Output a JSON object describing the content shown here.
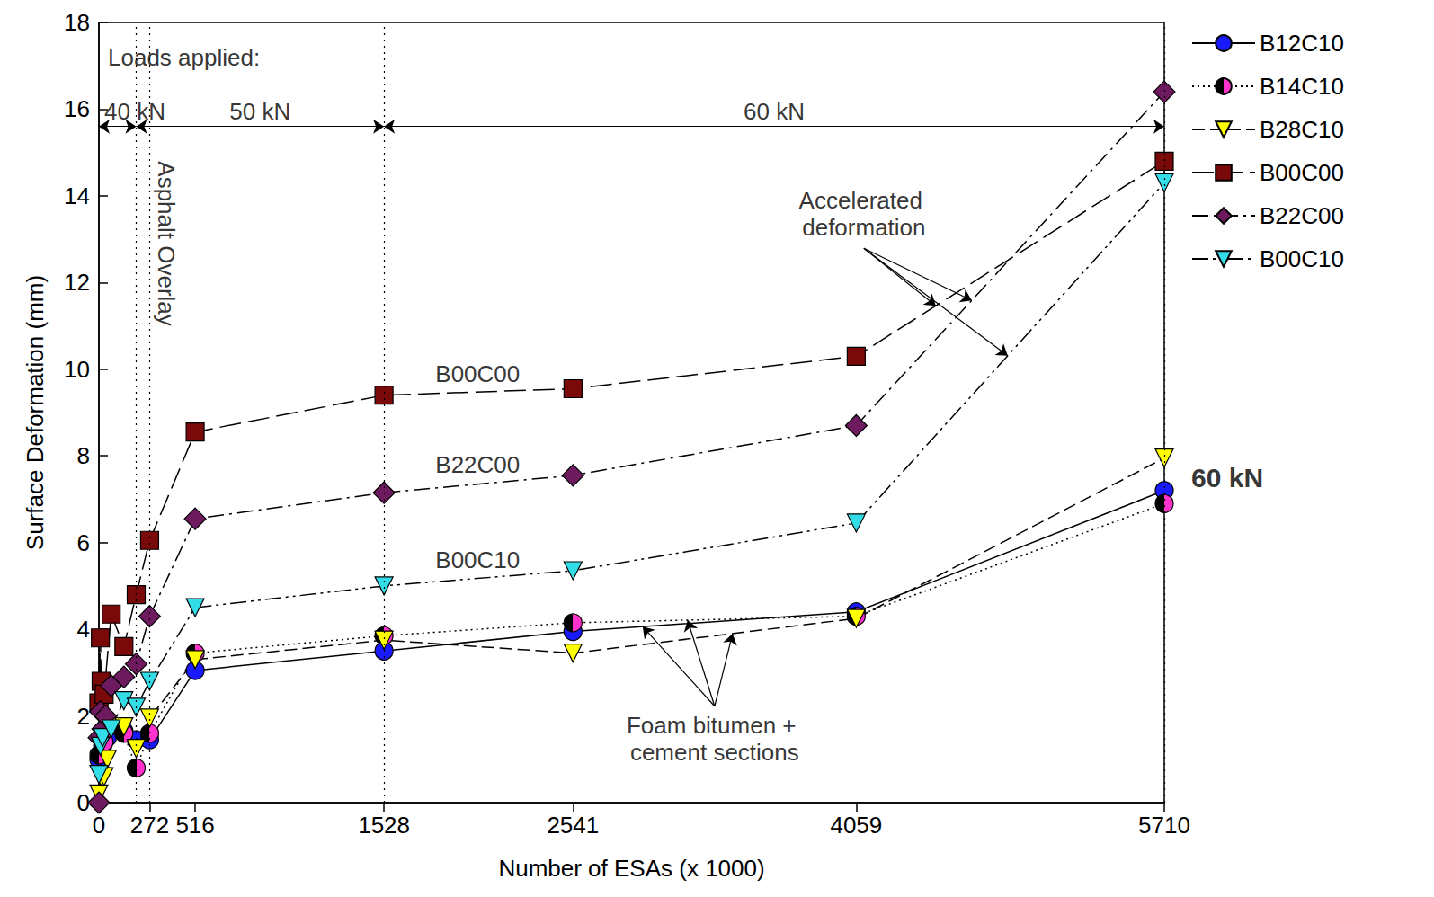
{
  "chart_data": {
    "type": "line",
    "x_label": "Number of ESAs (x 1000)",
    "y_label": "Surface Deformation (mm)",
    "xlim": [
      0,
      5710
    ],
    "xticks": [
      0,
      272,
      516,
      1528,
      2541,
      4059,
      5710
    ],
    "ylim": [
      0,
      18
    ],
    "yticks": [
      0,
      2,
      4,
      6,
      8,
      10,
      12,
      14,
      16,
      18
    ],
    "grid": false,
    "legend": "right",
    "series": [
      {
        "name": "B12C10",
        "color": "#1a1aff",
        "marker": "circle",
        "line_style": "solid",
        "x": [
          0,
          20,
          45,
          66,
          134,
          200,
          272,
          516,
          1528,
          2541,
          4059,
          5710
        ],
        "values": [
          1.0,
          1.3,
          1.5,
          1.8,
          1.65,
          1.45,
          1.45,
          3.05,
          3.5,
          3.95,
          4.4,
          7.2
        ]
      },
      {
        "name": "B14C10",
        "color": "#ff33cc",
        "marker": "half_circle",
        "line_style": "dotted",
        "x": [
          0,
          28,
          66,
          134,
          200,
          272,
          516,
          1528,
          2541,
          4059,
          5710
        ],
        "values": [
          1.1,
          1.4,
          1.8,
          1.6,
          0.8,
          1.6,
          3.45,
          3.85,
          4.15,
          4.3,
          6.9
        ]
      },
      {
        "name": "B28C10",
        "color": "#ffff00",
        "marker": "triangle_down",
        "line_style": "dashed",
        "x": [
          0,
          12,
          28,
          45,
          66,
          134,
          200,
          272,
          516,
          1528,
          2541,
          4059,
          5710
        ],
        "values": [
          0.2,
          0.6,
          0.6,
          1.0,
          1.75,
          1.75,
          1.25,
          1.95,
          3.3,
          3.75,
          3.45,
          4.25,
          7.95
        ]
      },
      {
        "name": "B00C00",
        "color": "#7a0a0a",
        "marker": "square",
        "line_style": "longdash",
        "x": [
          0,
          8,
          12,
          28,
          66,
          134,
          200,
          272,
          516,
          1528,
          2541,
          4059,
          5710
        ],
        "values": [
          2.3,
          3.8,
          2.8,
          2.5,
          4.35,
          3.6,
          4.8,
          6.05,
          8.55,
          9.4,
          9.55,
          10.3,
          14.8
        ]
      },
      {
        "name": "B22C00",
        "color": "#6e1a5e",
        "marker": "diamond",
        "line_style": "dashdot",
        "x": [
          0,
          0,
          8,
          20,
          36,
          66,
          134,
          200,
          272,
          516,
          1528,
          2541,
          4059,
          5710
        ],
        "values": [
          0,
          1.5,
          2.1,
          1.7,
          2.0,
          2.7,
          2.9,
          3.2,
          4.3,
          6.55,
          7.15,
          7.55,
          8.7,
          16.4
        ]
      },
      {
        "name": "B00C10",
        "color": "#33dde8",
        "marker": "triangle_down",
        "line_style": "dashdotdot",
        "x": [
          0,
          8,
          20,
          66,
          134,
          200,
          272,
          516,
          1528,
          2541,
          4059,
          5710
        ],
        "values": [
          0.65,
          1.3,
          1.5,
          1.7,
          2.35,
          2.2,
          2.8,
          4.5,
          5.0,
          5.35,
          6.45,
          14.3
        ]
      }
    ],
    "loads": {
      "title": "Loads applied:",
      "title_y": 17.2,
      "arrow_y": 15.6,
      "ranges": [
        {
          "text": "40 kN",
          "from": 0,
          "to": 200
        },
        {
          "text": "50 kN",
          "from": 200,
          "to": 1528
        },
        {
          "text": "60 kN",
          "from": 1528,
          "to": 5710
        }
      ]
    },
    "vlines": [
      {
        "x": 200
      },
      {
        "x": 272,
        "label": "Asphalt Overlay",
        "label_y": 14.8
      },
      {
        "x": 1528
      },
      {
        "x": 5710
      }
    ],
    "annotations": [
      {
        "text": "B00C00",
        "x": 2030,
        "y": 9.5
      },
      {
        "text": "B22C00",
        "x": 2030,
        "y": 7.4
      },
      {
        "text": "B00C10",
        "x": 2030,
        "y": 5.2
      },
      {
        "text": "Accelerated deformation",
        "x": 4100,
        "y": 14.2,
        "arrows_to": [
          "B00C00",
          "B22C00",
          "B00C10"
        ]
      },
      {
        "text": "Foam bitumen + cement sections",
        "x": 3300,
        "y": 2.1,
        "arrows_to": [
          "B12C10",
          "B14C10",
          "B28C10"
        ]
      },
      {
        "text": "60 kN",
        "x": 5710,
        "y": 7.5
      }
    ]
  }
}
